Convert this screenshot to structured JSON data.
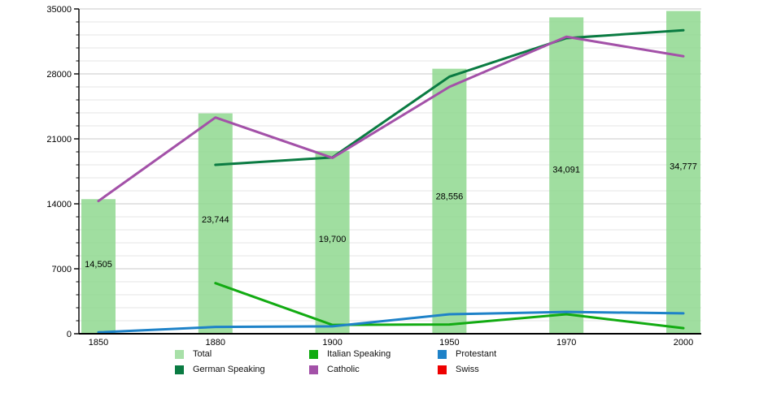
{
  "chart_data": {
    "type": "bar+line",
    "title": "",
    "xlabel": "",
    "ylabel": "",
    "categories": [
      "1850",
      "1880",
      "1900",
      "1950",
      "1970",
      "2000"
    ],
    "ylim": [
      0,
      35000
    ],
    "yticks": [
      0,
      7000,
      14000,
      21000,
      28000,
      35000
    ],
    "ytick_labels": [
      "0",
      "7000",
      "14000",
      "21000",
      "28000",
      "35000"
    ],
    "minor_grid_step": 1400,
    "grid": "horizontal-on",
    "legend_position": "bottom",
    "bar_series": {
      "name": "Total",
      "color": "#8fd88f",
      "values": [
        14505,
        23744,
        19700,
        28556,
        34091,
        34777
      ],
      "labels": [
        "14,505",
        "23,744",
        "19,700",
        "28,556",
        "34,091",
        "34,777"
      ]
    },
    "line_series": [
      {
        "name": "Italian Speaking",
        "color": "#12ab12",
        "values": [
          null,
          5450,
          950,
          1000,
          2100,
          600
        ]
      },
      {
        "name": "German Speaking",
        "color": "#0a7b42",
        "values": [
          null,
          18200,
          19000,
          27700,
          31850,
          32700
        ]
      },
      {
        "name": "Catholic",
        "color": "#a351a8",
        "values": [
          14300,
          23300,
          18950,
          26600,
          32000,
          29900
        ]
      },
      {
        "name": "Protestant",
        "color": "#1e82c8",
        "values": [
          150,
          730,
          800,
          2100,
          2350,
          2200
        ]
      },
      {
        "name": "Swiss",
        "color": "#ee0000",
        "values": [
          null,
          null,
          null,
          null,
          null,
          null
        ]
      }
    ],
    "legend": {
      "columns": [
        [
          {
            "label": "Total",
            "color": "#a8e0a8"
          },
          {
            "label": "German Speaking",
            "color": "#0a7b42"
          }
        ],
        [
          {
            "label": "Italian Speaking",
            "color": "#12ab12"
          },
          {
            "label": "Catholic",
            "color": "#a351a8"
          }
        ],
        [
          {
            "label": "Protestant",
            "color": "#1e82c8"
          },
          {
            "label": "Swiss",
            "color": "#ee0000"
          }
        ]
      ]
    },
    "axis_color": "#000000",
    "major_grid_color": "#c8c8c8",
    "minor_grid_color": "#e6e6e6"
  }
}
